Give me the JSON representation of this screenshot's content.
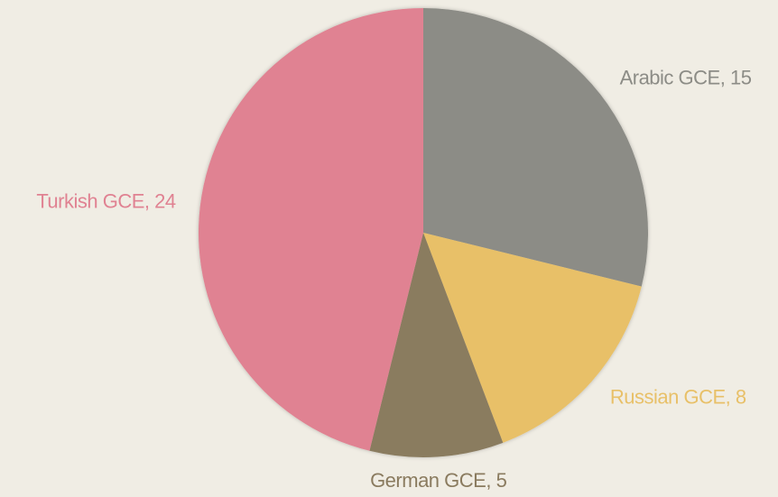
{
  "chart_data": {
    "type": "pie",
    "categories": [
      "Arabic GCE",
      "Russian GCE",
      "German GCE",
      "Turkish GCE"
    ],
    "values": [
      15,
      8,
      5,
      24
    ],
    "colors": [
      "#8c8c86",
      "#e8c068",
      "#8a7b5f",
      "#e08292"
    ]
  }
}
